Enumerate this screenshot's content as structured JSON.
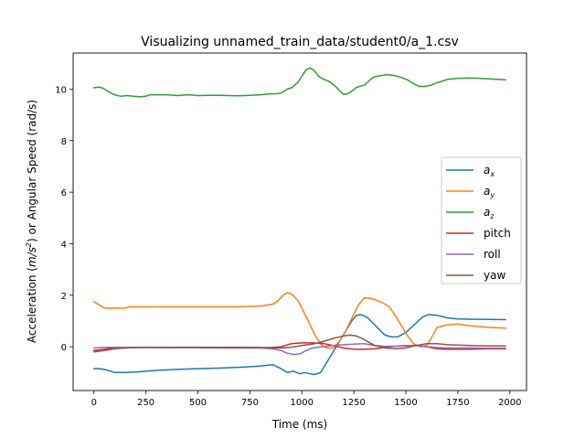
{
  "chart_data": {
    "type": "line",
    "title": "Visualizing unnamed_train_data/student0/a_1.csv",
    "xlabel": "Time (ms)",
    "ylabel_parts": [
      "Acceleration (",
      "m/s",
      "2",
      ") or Angular Speed (rad/s)"
    ],
    "xlim": [
      -100,
      2080
    ],
    "ylim": [
      -1.7,
      11.4
    ],
    "xticks": [
      0,
      250,
      500,
      750,
      1000,
      1250,
      1500,
      1750,
      2000
    ],
    "yticks": [
      0,
      2,
      4,
      6,
      8,
      10
    ],
    "grid": false,
    "legend_position": "center-right",
    "series": [
      {
        "name": "a_x",
        "label_base": "a",
        "label_sub": "x",
        "color": "#1f77b4",
        "x": [
          0,
          30,
          60,
          100,
          150,
          200,
          250,
          300,
          400,
          500,
          600,
          700,
          800,
          860,
          900,
          930,
          960,
          990,
          1010,
          1040,
          1060,
          1090,
          1120,
          1150,
          1180,
          1210,
          1240,
          1260,
          1280,
          1300,
          1320,
          1350,
          1380,
          1400,
          1430,
          1460,
          1500,
          1540,
          1580,
          1610,
          1650,
          1700,
          1750,
          1800,
          1900,
          1980
        ],
        "y": [
          -0.85,
          -0.85,
          -0.9,
          -1.0,
          -1.0,
          -0.98,
          -0.95,
          -0.92,
          -0.88,
          -0.85,
          -0.83,
          -0.8,
          -0.75,
          -0.7,
          -0.85,
          -1.0,
          -0.95,
          -1.05,
          -1.0,
          -1.05,
          -1.08,
          -1.0,
          -0.6,
          -0.2,
          0.2,
          0.6,
          1.0,
          1.2,
          1.25,
          1.2,
          1.1,
          0.85,
          0.6,
          0.45,
          0.38,
          0.38,
          0.55,
          0.85,
          1.15,
          1.25,
          1.22,
          1.12,
          1.08,
          1.07,
          1.06,
          1.05
        ]
      },
      {
        "name": "a_y",
        "label_base": "a",
        "label_sub": "y",
        "color": "#ff7f0e",
        "x": [
          0,
          20,
          50,
          80,
          120,
          150,
          170,
          200,
          250,
          300,
          400,
          500,
          600,
          700,
          800,
          860,
          880,
          910,
          930,
          950,
          980,
          1000,
          1030,
          1060,
          1090,
          1120,
          1150,
          1180,
          1210,
          1240,
          1270,
          1300,
          1330,
          1360,
          1390,
          1420,
          1450,
          1480,
          1510,
          1540,
          1570,
          1600,
          1620,
          1650,
          1700,
          1750,
          1800,
          1900,
          1980
        ],
        "y": [
          1.75,
          1.65,
          1.5,
          1.5,
          1.5,
          1.5,
          1.55,
          1.55,
          1.55,
          1.55,
          1.55,
          1.55,
          1.55,
          1.55,
          1.58,
          1.65,
          1.75,
          2.0,
          2.1,
          2.05,
          1.8,
          1.5,
          1.0,
          0.5,
          0.1,
          -0.05,
          -0.05,
          0.2,
          0.6,
          1.1,
          1.6,
          1.9,
          1.88,
          1.8,
          1.7,
          1.55,
          1.2,
          0.8,
          0.4,
          0.1,
          0.0,
          0.05,
          0.3,
          0.75,
          0.85,
          0.88,
          0.82,
          0.75,
          0.72
        ]
      },
      {
        "name": "a_z",
        "label_base": "a",
        "label_sub": "z",
        "color": "#2ca02c",
        "x": [
          0,
          20,
          40,
          60,
          80,
          100,
          130,
          160,
          190,
          220,
          250,
          270,
          300,
          350,
          400,
          450,
          500,
          550,
          600,
          650,
          700,
          750,
          800,
          850,
          880,
          900,
          930,
          950,
          980,
          1000,
          1020,
          1040,
          1060,
          1080,
          1100,
          1130,
          1160,
          1180,
          1200,
          1220,
          1240,
          1260,
          1280,
          1300,
          1320,
          1340,
          1360,
          1380,
          1400,
          1420,
          1450,
          1480,
          1510,
          1540,
          1560,
          1580,
          1600,
          1620,
          1650,
          1680,
          1700,
          1750,
          1800,
          1850,
          1900,
          1980
        ],
        "y": [
          10.05,
          10.08,
          10.05,
          9.95,
          9.85,
          9.78,
          9.72,
          9.75,
          9.72,
          9.7,
          9.72,
          9.78,
          9.78,
          9.78,
          9.75,
          9.78,
          9.75,
          9.76,
          9.76,
          9.75,
          9.74,
          9.76,
          9.78,
          9.82,
          9.82,
          9.85,
          10.0,
          10.05,
          10.25,
          10.5,
          10.75,
          10.82,
          10.72,
          10.5,
          10.4,
          10.3,
          10.12,
          9.95,
          9.8,
          9.82,
          9.92,
          10.05,
          10.12,
          10.15,
          10.3,
          10.45,
          10.5,
          10.52,
          10.55,
          10.55,
          10.52,
          10.45,
          10.35,
          10.2,
          10.12,
          10.1,
          10.12,
          10.15,
          10.25,
          10.32,
          10.38,
          10.42,
          10.43,
          10.42,
          10.4,
          10.36
        ]
      },
      {
        "name": "pitch",
        "label": "pitch",
        "color": "#d62728",
        "x": [
          0,
          50,
          100,
          200,
          300,
          400,
          500,
          600,
          700,
          800,
          850,
          900,
          950,
          1000,
          1050,
          1100,
          1150,
          1200,
          1250,
          1300,
          1350,
          1400,
          1450,
          1500,
          1550,
          1600,
          1650,
          1700,
          1800,
          1900,
          1980
        ],
        "y": [
          -0.15,
          -0.1,
          -0.05,
          -0.02,
          -0.03,
          -0.03,
          -0.03,
          -0.02,
          -0.03,
          -0.03,
          -0.03,
          0.0,
          0.12,
          0.15,
          0.15,
          0.13,
          0.05,
          -0.05,
          -0.1,
          -0.1,
          -0.08,
          -0.02,
          0.02,
          0.03,
          0.05,
          0.0,
          -0.08,
          -0.1,
          -0.1,
          -0.08,
          -0.08
        ]
      },
      {
        "name": "roll",
        "label": "roll",
        "color": "#9467bd",
        "x": [
          0,
          50,
          100,
          200,
          300,
          400,
          500,
          600,
          700,
          800,
          860,
          900,
          930,
          960,
          990,
          1020,
          1050,
          1100,
          1150,
          1200,
          1250,
          1300,
          1350,
          1400,
          1450,
          1500,
          1550,
          1600,
          1650,
          1700,
          1800,
          1900,
          1980
        ],
        "y": [
          -0.05,
          -0.02,
          -0.02,
          -0.03,
          -0.03,
          -0.04,
          -0.04,
          -0.05,
          -0.05,
          -0.05,
          -0.08,
          -0.15,
          -0.25,
          -0.3,
          -0.28,
          -0.15,
          -0.05,
          0.0,
          0.05,
          0.08,
          0.1,
          0.12,
          0.05,
          0.02,
          0.02,
          0.05,
          0.05,
          0.0,
          -0.03,
          -0.05,
          -0.05,
          -0.06,
          -0.06
        ]
      },
      {
        "name": "yaw",
        "label": "yaw",
        "color": "#8c564b",
        "x": [
          0,
          50,
          100,
          150,
          200,
          250,
          300,
          400,
          500,
          600,
          700,
          800,
          850,
          900,
          950,
          1000,
          1050,
          1100,
          1150,
          1200,
          1230,
          1260,
          1290,
          1320,
          1350,
          1400,
          1450,
          1500,
          1550,
          1600,
          1650,
          1700,
          1800,
          1900,
          1980
        ],
        "y": [
          -0.2,
          -0.15,
          -0.08,
          -0.05,
          -0.03,
          -0.02,
          -0.02,
          -0.02,
          -0.02,
          -0.02,
          -0.02,
          -0.03,
          -0.05,
          -0.05,
          -0.02,
          0.05,
          0.1,
          0.2,
          0.32,
          0.42,
          0.45,
          0.42,
          0.32,
          0.18,
          0.05,
          -0.05,
          -0.08,
          -0.05,
          0.05,
          0.12,
          0.12,
          0.08,
          0.05,
          0.03,
          0.03
        ]
      }
    ]
  }
}
